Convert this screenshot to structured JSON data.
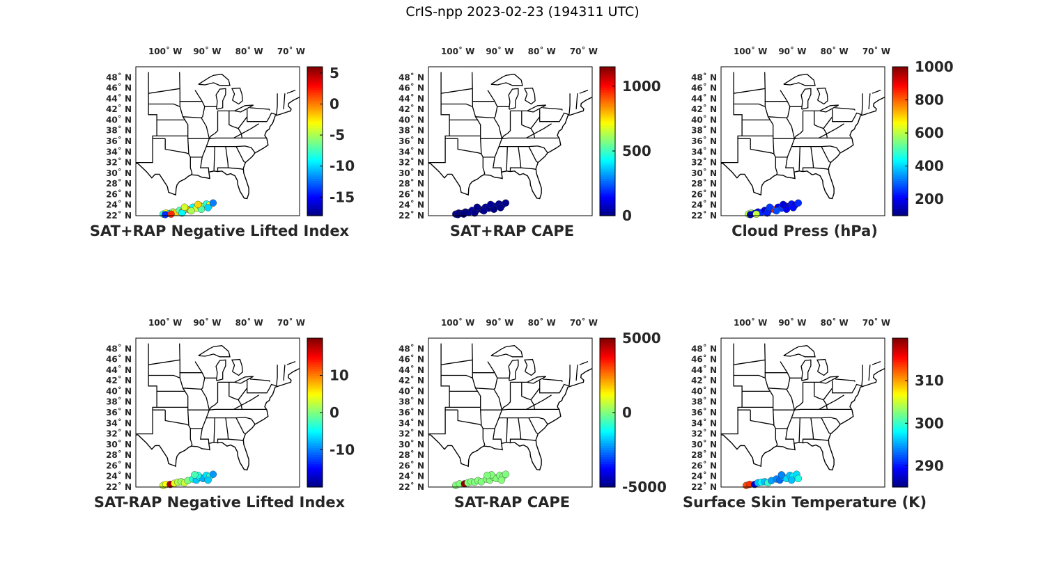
{
  "figure": {
    "title": "CrIS-npp 2023-02-23 (194311 UTC)"
  },
  "map": {
    "lon_ticks": [
      {
        "value": -100,
        "label": "100˚ W"
      },
      {
        "value": -90,
        "label": "90˚ W"
      },
      {
        "value": -80,
        "label": "80˚ W"
      },
      {
        "value": -70,
        "label": "70˚ W"
      }
    ],
    "lat_ticks": [
      {
        "value": 22,
        "label": "22˚ N"
      },
      {
        "value": 24,
        "label": "24˚ N"
      },
      {
        "value": 26,
        "label": "26˚ N"
      },
      {
        "value": 28,
        "label": "28˚ N"
      },
      {
        "value": 30,
        "label": "30˚ N"
      },
      {
        "value": 32,
        "label": "32˚ N"
      },
      {
        "value": 34,
        "label": "34˚ N"
      },
      {
        "value": 36,
        "label": "36˚ N"
      },
      {
        "value": 38,
        "label": "38˚ N"
      },
      {
        "value": 40,
        "label": "40˚ N"
      },
      {
        "value": 42,
        "label": "42˚ N"
      },
      {
        "value": 44,
        "label": "44˚ N"
      },
      {
        "value": 46,
        "label": "46˚ N"
      },
      {
        "value": 48,
        "label": "48˚ N"
      }
    ],
    "lon_range": [
      -107,
      -68
    ],
    "lat_range": [
      22,
      50
    ],
    "colormap": "jet"
  },
  "panels": [
    {
      "id": "sat-rap-plus-nli",
      "caption": "SAT+RAP Negative Lifted Index",
      "colorbar": {
        "min": -18,
        "max": 6,
        "ticks": [
          {
            "value": 5,
            "label": "5"
          },
          {
            "value": 0,
            "label": "0"
          },
          {
            "value": -5,
            "label": "-5"
          },
          {
            "value": -10,
            "label": "-10"
          },
          {
            "value": -15,
            "label": "-15"
          }
        ]
      },
      "points": [
        {
          "lon": -100.5,
          "lat": 22.3,
          "v": -8
        },
        {
          "lon": -99.8,
          "lat": 22.5,
          "v": -3
        },
        {
          "lon": -99.0,
          "lat": 22.4,
          "v": -10
        },
        {
          "lon": -98.2,
          "lat": 22.7,
          "v": -5
        },
        {
          "lon": -97.4,
          "lat": 22.6,
          "v": -2
        },
        {
          "lon": -96.6,
          "lat": 23.0,
          "v": -7
        },
        {
          "lon": -95.8,
          "lat": 22.8,
          "v": 1
        },
        {
          "lon": -95.0,
          "lat": 23.3,
          "v": -6
        },
        {
          "lon": -94.2,
          "lat": 23.1,
          "v": -1
        },
        {
          "lon": -93.4,
          "lat": 23.6,
          "v": -9
        },
        {
          "lon": -92.6,
          "lat": 23.4,
          "v": -4
        },
        {
          "lon": -91.8,
          "lat": 23.9,
          "v": -11
        },
        {
          "lon": -91.0,
          "lat": 23.7,
          "v": -6
        },
        {
          "lon": -90.2,
          "lat": 24.2,
          "v": -8
        },
        {
          "lon": -89.4,
          "lat": 24.0,
          "v": -3
        },
        {
          "lon": -88.6,
          "lat": 24.4,
          "v": -12
        },
        {
          "lon": -100.0,
          "lat": 22.2,
          "v": -14
        },
        {
          "lon": -98.6,
          "lat": 22.3,
          "v": 2
        },
        {
          "lon": -96.0,
          "lat": 22.5,
          "v": -9
        },
        {
          "lon": -93.8,
          "lat": 22.9,
          "v": -5
        },
        {
          "lon": -91.4,
          "lat": 23.2,
          "v": -7
        },
        {
          "lon": -89.8,
          "lat": 23.5,
          "v": -10
        },
        {
          "lon": -95.4,
          "lat": 23.6,
          "v": -4
        },
        {
          "lon": -92.2,
          "lat": 24.1,
          "v": -2
        }
      ]
    },
    {
      "id": "sat-rap-plus-cape",
      "caption": "SAT+RAP CAPE",
      "colorbar": {
        "min": 0,
        "max": 1150,
        "ticks": [
          {
            "value": 1000,
            "label": "1000"
          },
          {
            "value": 500,
            "label": "500"
          },
          {
            "value": 0,
            "label": "0"
          }
        ]
      },
      "points": [
        {
          "lon": -100.5,
          "lat": 22.3,
          "v": 20
        },
        {
          "lon": -99.8,
          "lat": 22.5,
          "v": 10
        },
        {
          "lon": -99.0,
          "lat": 22.4,
          "v": 30
        },
        {
          "lon": -98.2,
          "lat": 22.7,
          "v": 5
        },
        {
          "lon": -97.4,
          "lat": 22.6,
          "v": 15
        },
        {
          "lon": -96.6,
          "lat": 23.0,
          "v": 40
        },
        {
          "lon": -95.8,
          "lat": 22.8,
          "v": 10
        },
        {
          "lon": -95.0,
          "lat": 23.3,
          "v": 25
        },
        {
          "lon": -94.2,
          "lat": 23.1,
          "v": 5
        },
        {
          "lon": -93.4,
          "lat": 23.6,
          "v": 35
        },
        {
          "lon": -92.6,
          "lat": 23.4,
          "v": 15
        },
        {
          "lon": -91.8,
          "lat": 23.9,
          "v": 20
        },
        {
          "lon": -91.0,
          "lat": 23.7,
          "v": 10
        },
        {
          "lon": -90.2,
          "lat": 24.2,
          "v": 30
        },
        {
          "lon": -89.4,
          "lat": 24.0,
          "v": 5
        },
        {
          "lon": -88.6,
          "lat": 24.4,
          "v": 15
        },
        {
          "lon": -100.0,
          "lat": 22.2,
          "v": 0
        },
        {
          "lon": -98.6,
          "lat": 22.3,
          "v": 0
        },
        {
          "lon": -96.0,
          "lat": 22.5,
          "v": 10
        },
        {
          "lon": -93.8,
          "lat": 22.9,
          "v": 20
        },
        {
          "lon": -91.4,
          "lat": 23.2,
          "v": 5
        },
        {
          "lon": -89.8,
          "lat": 23.5,
          "v": 10
        },
        {
          "lon": -95.4,
          "lat": 23.6,
          "v": 15
        },
        {
          "lon": -92.2,
          "lat": 24.1,
          "v": 25
        }
      ]
    },
    {
      "id": "cloud-press",
      "caption": "Cloud Press (hPa)",
      "colorbar": {
        "min": 100,
        "max": 1000,
        "ticks": [
          {
            "value": 1000,
            "label": "1000"
          },
          {
            "value": 800,
            "label": "800"
          },
          {
            "value": 600,
            "label": "600"
          },
          {
            "value": 400,
            "label": "400"
          },
          {
            "value": 200,
            "label": "200"
          }
        ]
      },
      "points": [
        {
          "lon": -100.5,
          "lat": 22.3,
          "v": 600
        },
        {
          "lon": -99.8,
          "lat": 22.5,
          "v": 580
        },
        {
          "lon": -99.0,
          "lat": 22.4,
          "v": 230
        },
        {
          "lon": -98.2,
          "lat": 22.7,
          "v": 200
        },
        {
          "lon": -97.4,
          "lat": 22.6,
          "v": 250
        },
        {
          "lon": -96.6,
          "lat": 23.0,
          "v": 180
        },
        {
          "lon": -95.8,
          "lat": 22.8,
          "v": 300
        },
        {
          "lon": -95.0,
          "lat": 23.3,
          "v": 220
        },
        {
          "lon": -94.2,
          "lat": 23.1,
          "v": 850
        },
        {
          "lon": -93.4,
          "lat": 23.6,
          "v": 200
        },
        {
          "lon": -92.6,
          "lat": 23.4,
          "v": 260
        },
        {
          "lon": -91.8,
          "lat": 23.9,
          "v": 870
        },
        {
          "lon": -91.0,
          "lat": 23.7,
          "v": 210
        },
        {
          "lon": -90.2,
          "lat": 24.2,
          "v": 230
        },
        {
          "lon": -89.4,
          "lat": 24.0,
          "v": 190
        },
        {
          "lon": -88.6,
          "lat": 24.4,
          "v": 250
        },
        {
          "lon": -100.0,
          "lat": 22.2,
          "v": 150
        },
        {
          "lon": -98.6,
          "lat": 22.3,
          "v": 610
        },
        {
          "lon": -96.0,
          "lat": 22.5,
          "v": 240
        },
        {
          "lon": -93.8,
          "lat": 22.9,
          "v": 280
        },
        {
          "lon": -91.4,
          "lat": 23.2,
          "v": 200
        },
        {
          "lon": -89.8,
          "lat": 23.5,
          "v": 220
        },
        {
          "lon": -95.4,
          "lat": 23.6,
          "v": 260
        },
        {
          "lon": -92.2,
          "lat": 24.1,
          "v": 180
        }
      ]
    },
    {
      "id": "sat-rap-minus-nli",
      "caption": "SAT-RAP Negative Lifted Index",
      "colorbar": {
        "min": -20,
        "max": 20,
        "ticks": [
          {
            "value": 10,
            "label": "10"
          },
          {
            "value": 0,
            "label": "0"
          },
          {
            "value": -10,
            "label": "-10"
          }
        ]
      },
      "points": [
        {
          "lon": -100.5,
          "lat": 22.3,
          "v": 3
        },
        {
          "lon": -99.8,
          "lat": 22.5,
          "v": 5
        },
        {
          "lon": -98.8,
          "lat": 22.5,
          "v": 18
        },
        {
          "lon": -97.8,
          "lat": 22.7,
          "v": 4
        },
        {
          "lon": -97.0,
          "lat": 22.9,
          "v": 2
        },
        {
          "lon": -96.2,
          "lat": 23.0,
          "v": 1
        },
        {
          "lon": -95.4,
          "lat": 22.8,
          "v": 3
        },
        {
          "lon": -94.6,
          "lat": 23.2,
          "v": 0
        },
        {
          "lon": -93.4,
          "lat": 23.5,
          "v": -4
        },
        {
          "lon": -92.6,
          "lat": 23.3,
          "v": -7
        },
        {
          "lon": -91.8,
          "lat": 23.9,
          "v": -5
        },
        {
          "lon": -91.0,
          "lat": 23.6,
          "v": -8
        },
        {
          "lon": -90.2,
          "lat": 24.2,
          "v": -6
        },
        {
          "lon": -89.4,
          "lat": 24.0,
          "v": -3
        },
        {
          "lon": -88.6,
          "lat": 24.4,
          "v": -9
        },
        {
          "lon": -92.2,
          "lat": 24.2,
          "v": -4
        },
        {
          "lon": -89.8,
          "lat": 23.3,
          "v": -7
        },
        {
          "lon": -93.0,
          "lat": 24.3,
          "v": -2
        }
      ]
    },
    {
      "id": "sat-rap-minus-cape",
      "caption": "SAT-RAP CAPE",
      "colorbar": {
        "min": -5000,
        "max": 5000,
        "ticks": [
          {
            "value": 5000,
            "label": "5000"
          },
          {
            "value": 0,
            "label": "0"
          },
          {
            "value": -5000,
            "label": "-5000"
          }
        ]
      },
      "points": [
        {
          "lon": -100.5,
          "lat": 22.3,
          "v": 50
        },
        {
          "lon": -99.6,
          "lat": 22.6,
          "v": 20
        },
        {
          "lon": -98.4,
          "lat": 22.6,
          "v": 4800
        },
        {
          "lon": -97.6,
          "lat": 22.8,
          "v": 30
        },
        {
          "lon": -96.8,
          "lat": 23.0,
          "v": 40
        },
        {
          "lon": -96.0,
          "lat": 22.9,
          "v": 10
        },
        {
          "lon": -95.2,
          "lat": 23.2,
          "v": 60
        },
        {
          "lon": -94.4,
          "lat": 23.0,
          "v": 20
        },
        {
          "lon": -93.2,
          "lat": 23.5,
          "v": 30
        },
        {
          "lon": -92.4,
          "lat": 23.3,
          "v": 50
        },
        {
          "lon": -91.6,
          "lat": 23.9,
          "v": 10
        },
        {
          "lon": -90.8,
          "lat": 23.6,
          "v": 40
        },
        {
          "lon": -90.0,
          "lat": 24.2,
          "v": 20
        },
        {
          "lon": -89.2,
          "lat": 24.0,
          "v": 30
        },
        {
          "lon": -88.6,
          "lat": 24.4,
          "v": 10
        },
        {
          "lon": -92.0,
          "lat": 24.3,
          "v": 40
        },
        {
          "lon": -89.6,
          "lat": 23.3,
          "v": 60
        },
        {
          "lon": -93.0,
          "lat": 24.2,
          "v": 20
        }
      ]
    },
    {
      "id": "surface-skin-temperature",
      "caption": "Surface Skin Temperature (K)",
      "colorbar": {
        "min": 285,
        "max": 320,
        "ticks": [
          {
            "value": 310,
            "label": "310"
          },
          {
            "value": 300,
            "label": "300"
          },
          {
            "value": 290,
            "label": "290"
          }
        ]
      },
      "points": [
        {
          "lon": -101.0,
          "lat": 22.3,
          "v": 313
        },
        {
          "lon": -100.2,
          "lat": 22.5,
          "v": 314
        },
        {
          "lon": -99.0,
          "lat": 22.5,
          "v": 288
        },
        {
          "lon": -98.2,
          "lat": 22.8,
          "v": 296
        },
        {
          "lon": -97.4,
          "lat": 22.9,
          "v": 298
        },
        {
          "lon": -96.6,
          "lat": 23.0,
          "v": 296
        },
        {
          "lon": -95.8,
          "lat": 22.8,
          "v": 300
        },
        {
          "lon": -95.0,
          "lat": 23.2,
          "v": 295
        },
        {
          "lon": -93.8,
          "lat": 23.5,
          "v": 294
        },
        {
          "lon": -93.0,
          "lat": 23.3,
          "v": 293
        },
        {
          "lon": -92.2,
          "lat": 23.9,
          "v": 295
        },
        {
          "lon": -91.4,
          "lat": 23.6,
          "v": 297
        },
        {
          "lon": -90.6,
          "lat": 24.2,
          "v": 296
        },
        {
          "lon": -89.8,
          "lat": 24.0,
          "v": 298
        },
        {
          "lon": -89.0,
          "lat": 24.4,
          "v": 297
        },
        {
          "lon": -92.6,
          "lat": 24.3,
          "v": 294
        },
        {
          "lon": -90.2,
          "lat": 23.3,
          "v": 296
        },
        {
          "lon": -88.6,
          "lat": 23.6,
          "v": 299
        }
      ]
    }
  ]
}
